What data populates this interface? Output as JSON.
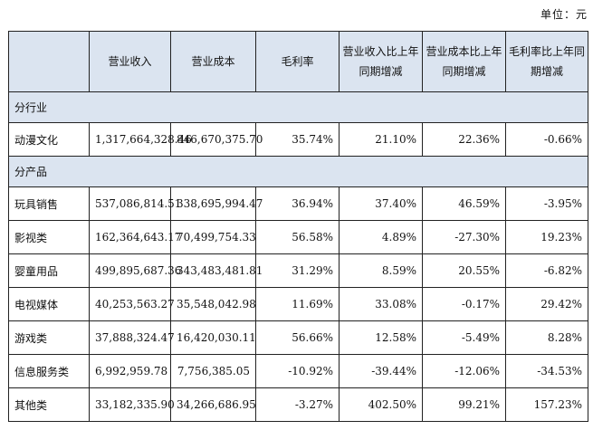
{
  "unit_label": "单位：元",
  "headers": [
    "",
    "营业收入",
    "营业成本",
    "毛利率",
    "营业收入比上年同期增减",
    "营业成本比上年同期增减",
    "毛利率比上年同期增减"
  ],
  "sections": [
    {
      "title": "分行业",
      "rows": [
        {
          "name": "动漫文化",
          "revenue": "1,317,664,328.46",
          "cost": "846,670,375.70",
          "margin": "35.74%",
          "rev_change": "21.10%",
          "cost_change": "22.36%",
          "margin_change": "-0.66%"
        }
      ]
    },
    {
      "title": "分产品",
      "rows": [
        {
          "name": "玩具销售",
          "revenue": "537,086,814.51",
          "cost": "338,695,994.47",
          "margin": "36.94%",
          "rev_change": "37.40%",
          "cost_change": "46.59%",
          "margin_change": "-3.95%"
        },
        {
          "name": "影视类",
          "revenue": "162,364,643.17",
          "cost": "70,499,754.33",
          "margin": "56.58%",
          "rev_change": "4.89%",
          "cost_change": "-27.30%",
          "margin_change": "19.23%"
        },
        {
          "name": "婴童用品",
          "revenue": "499,895,687.36",
          "cost": "343,483,481.81",
          "margin": "31.29%",
          "rev_change": "8.59%",
          "cost_change": "20.55%",
          "margin_change": "-6.82%"
        },
        {
          "name": "电视媒体",
          "revenue": "40,253,563.27",
          "cost": "35,548,042.98",
          "margin": "11.69%",
          "rev_change": "33.08%",
          "cost_change": "-0.17%",
          "margin_change": "29.42%"
        },
        {
          "name": "游戏类",
          "revenue": "37,888,324.47",
          "cost": "16,420,030.11",
          "margin": "56.66%",
          "rev_change": "12.58%",
          "cost_change": "-5.49%",
          "margin_change": "8.28%"
        },
        {
          "name": "信息服务类",
          "revenue": "6,992,959.78",
          "cost": "7,756,385.05",
          "margin": "-10.92%",
          "rev_change": "-39.44%",
          "cost_change": "-12.06%",
          "margin_change": "-34.53%"
        },
        {
          "name": "其他类",
          "revenue": "33,182,335.90",
          "cost": "34,266,686.95",
          "margin": "-3.27%",
          "rev_change": "402.50%",
          "cost_change": "99.21%",
          "margin_change": "157.23%"
        }
      ]
    }
  ]
}
